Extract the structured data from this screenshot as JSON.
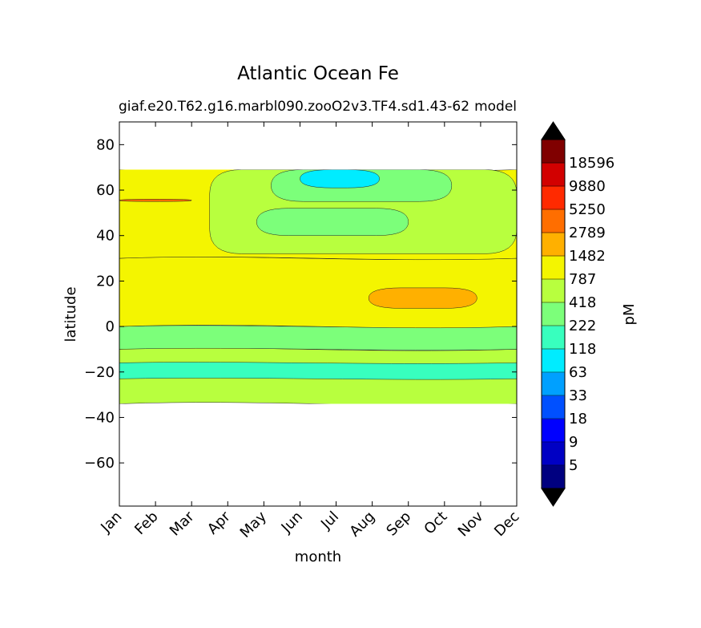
{
  "chart_data": {
    "type": "contour",
    "title": "Atlantic Ocean Fe",
    "subtitle_left": "giaf.e20.T62.g16.marbl090.zooO2v3.TF4.sd1.43-62",
    "subtitle_right": "model",
    "xlabel": "month",
    "ylabel": "latitude",
    "x_ticks": [
      "Jan",
      "Feb",
      "Mar",
      "Apr",
      "May",
      "Jun",
      "Jul",
      "Aug",
      "Sep",
      "Oct",
      "Nov",
      "Dec"
    ],
    "x_range": [
      1,
      12
    ],
    "y_ticks": [
      80,
      60,
      40,
      20,
      0,
      -20,
      -40,
      -60
    ],
    "y_tick_labels": [
      "80",
      "60",
      "40",
      "20",
      "0",
      "−20",
      "−40",
      "−60"
    ],
    "ylim": [
      -79,
      90
    ],
    "data_lat_range": [
      -34,
      69
    ],
    "colorbar": {
      "label": "pM",
      "extend": "both",
      "levels": [
        5,
        9,
        18,
        33,
        63,
        118,
        222,
        418,
        787,
        1482,
        2789,
        5250,
        9880,
        18596
      ],
      "level_labels": [
        "5",
        "9",
        "18",
        "33",
        "63",
        "118",
        "222",
        "418",
        "787",
        "1482",
        "2789",
        "5250",
        "9880",
        "18596"
      ],
      "colors": [
        "#000080",
        "#0000c4",
        "#0000ff",
        "#0050ff",
        "#00a0ff",
        "#00ecff",
        "#38ffbe",
        "#7cff7a",
        "#b8ff3e",
        "#f4f500",
        "#ffb000",
        "#ff6e00",
        "#ff2a00",
        "#d20000",
        "#800000"
      ],
      "under_color": "#000000",
      "over_color": "#000000"
    },
    "regions": [
      {
        "level": "418-787",
        "months": [
          1,
          12
        ],
        "lat": [
          -34,
          -10
        ]
      },
      {
        "level": "118-222",
        "months": [
          1,
          12
        ],
        "lat": [
          -23,
          -16
        ]
      },
      {
        "level": "222-418",
        "months": [
          1,
          12
        ],
        "lat": [
          -10,
          0
        ]
      },
      {
        "level": "787-1482",
        "months": [
          1,
          12
        ],
        "lat": [
          0,
          30
        ]
      },
      {
        "level": "1482-2789",
        "months": [
          7.9,
          10.9
        ],
        "lat": [
          8,
          17
        ]
      },
      {
        "level": "787-1482",
        "months": [
          1,
          12
        ],
        "lat": [
          30,
          69
        ]
      },
      {
        "level": "418-787",
        "months": [
          3.5,
          12
        ],
        "lat": [
          32,
          69
        ]
      },
      {
        "level": "222-418",
        "months": [
          4.8,
          9
        ],
        "lat": [
          40,
          52
        ]
      },
      {
        "level": "222-418",
        "months": [
          5.2,
          10.2
        ],
        "lat": [
          55,
          69
        ]
      },
      {
        "level": "63-118",
        "months": [
          6,
          8.2
        ],
        "lat": [
          61,
          69
        ]
      },
      {
        "level": "2789-5250",
        "months": [
          1,
          3.0
        ],
        "lat": [
          55,
          56
        ]
      }
    ]
  }
}
